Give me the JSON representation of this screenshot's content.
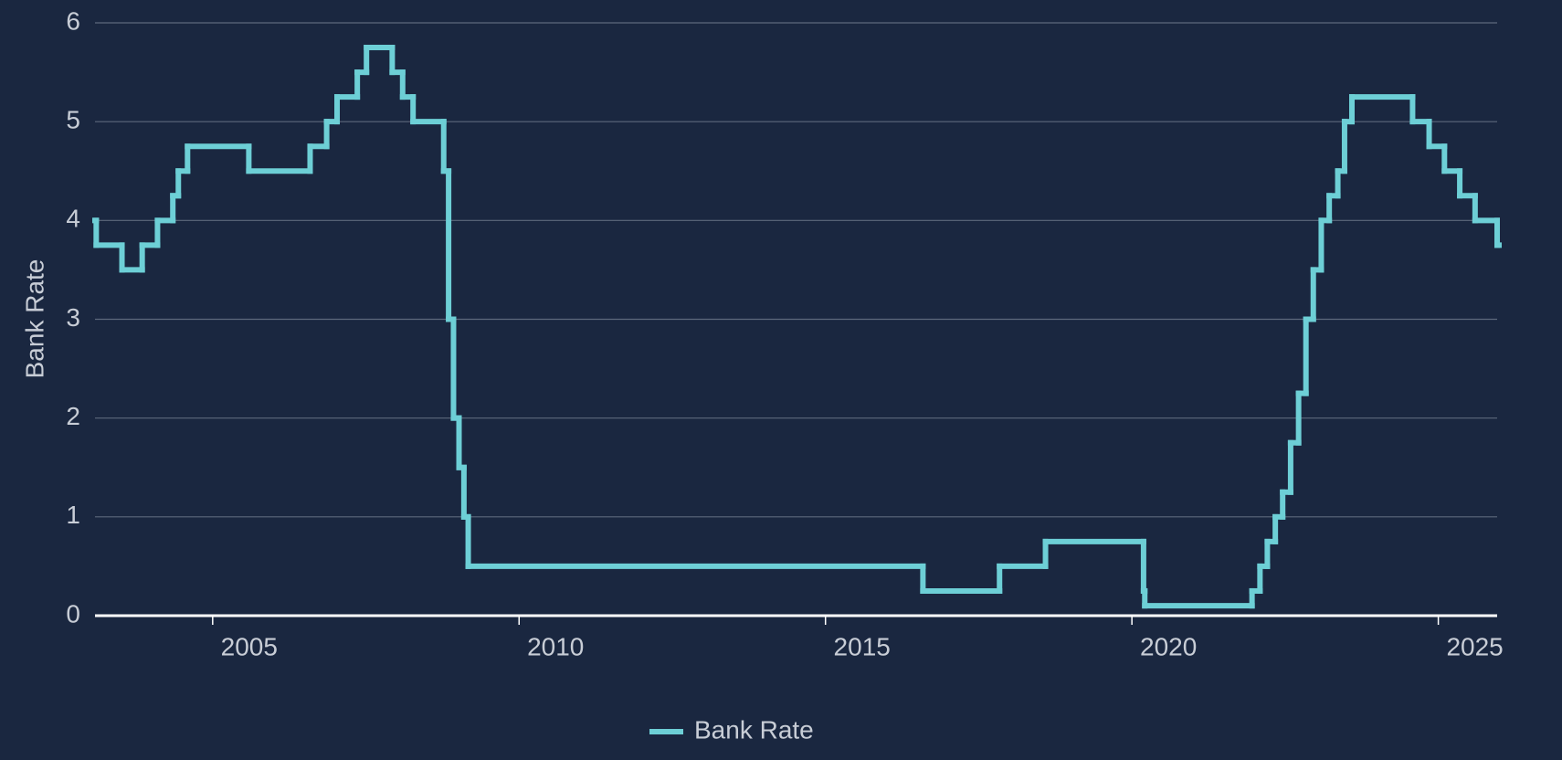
{
  "chart_data": {
    "type": "line",
    "step": "after",
    "y_label": "Bank Rate",
    "x": [
      2003.08,
      2003.1,
      2003.52,
      2003.85,
      2004.1,
      2004.35,
      2004.44,
      2004.59,
      2005.59,
      2006.59,
      2006.86,
      2007.03,
      2007.36,
      2007.51,
      2007.93,
      2008.1,
      2008.27,
      2008.77,
      2008.85,
      2008.93,
      2009.02,
      2009.1,
      2009.17,
      2016.59,
      2017.84,
      2018.59,
      2020.19,
      2020.21,
      2021.96,
      2022.09,
      2022.21,
      2022.34,
      2022.46,
      2022.59,
      2022.72,
      2022.84,
      2022.96,
      2023.09,
      2023.22,
      2023.36,
      2023.47,
      2023.59,
      2024.58,
      2024.85,
      2025.1,
      2025.35,
      2025.6,
      2025.96
    ],
    "series": [
      {
        "name": "Bank Rate",
        "color": "#6dcfd6",
        "values": [
          4.0,
          3.75,
          3.5,
          3.75,
          4.0,
          4.25,
          4.5,
          4.75,
          4.5,
          4.75,
          5.0,
          5.25,
          5.5,
          5.75,
          5.5,
          5.25,
          5.0,
          4.5,
          3.0,
          2.0,
          1.5,
          1.0,
          0.5,
          0.25,
          0.5,
          0.75,
          0.25,
          0.1,
          0.25,
          0.5,
          0.75,
          1.0,
          1.25,
          1.75,
          2.25,
          3.0,
          3.5,
          4.0,
          4.25,
          4.5,
          5.0,
          5.25,
          5.0,
          4.75,
          4.5,
          4.25,
          4.0,
          3.75
        ]
      }
    ],
    "xlim": [
      2003.08,
      2025.96
    ],
    "xticks": [
      2005,
      2010,
      2015,
      2020,
      2025
    ],
    "ylim": [
      0,
      6
    ],
    "yticks": [
      0,
      1,
      2,
      3,
      4,
      5,
      6
    ],
    "grid": true,
    "legend": "bottom"
  }
}
